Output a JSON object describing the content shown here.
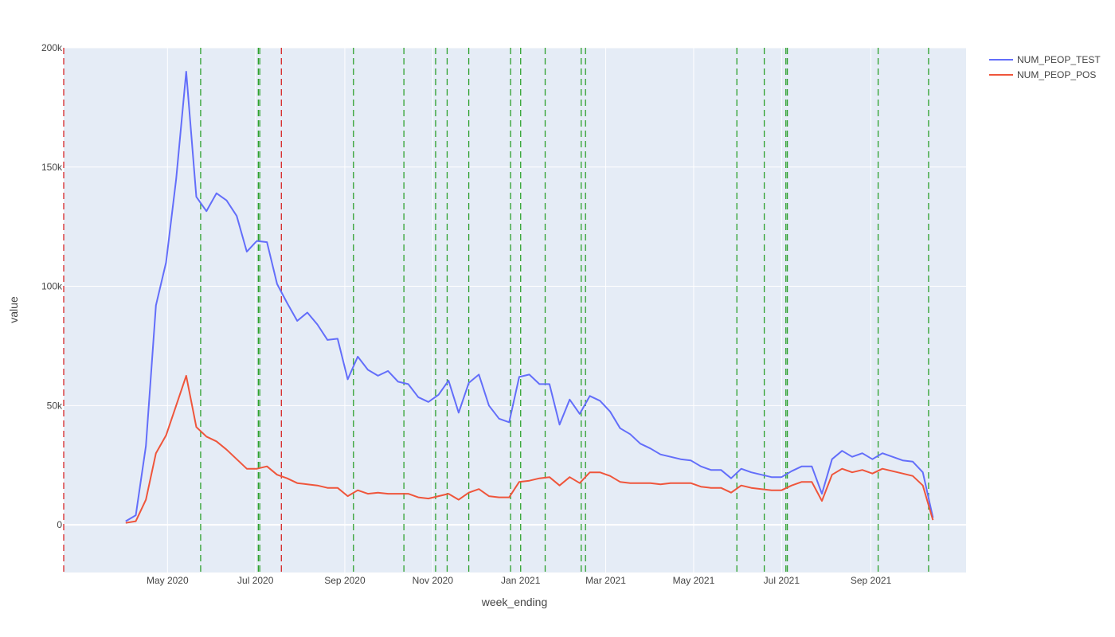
{
  "chart_data": {
    "type": "line",
    "xlabel": "week_ending",
    "ylabel": "value",
    "x_range": [
      "2020-02-19",
      "2021-11-06"
    ],
    "ylim": [
      -20000,
      200000
    ],
    "x_ticks": [
      {
        "date": "2020-05-01",
        "label": "May 2020"
      },
      {
        "date": "2020-07-01",
        "label": "Jul 2020"
      },
      {
        "date": "2020-09-01",
        "label": "Sep 2020"
      },
      {
        "date": "2020-11-01",
        "label": "Nov 2020"
      },
      {
        "date": "2021-01-01",
        "label": "Jan 2021"
      },
      {
        "date": "2021-03-01",
        "label": "Mar 2021"
      },
      {
        "date": "2021-05-01",
        "label": "May 2021"
      },
      {
        "date": "2021-07-01",
        "label": "Jul 2021"
      },
      {
        "date": "2021-09-01",
        "label": "Sep 2021"
      }
    ],
    "y_ticks": [
      {
        "value": 0,
        "label": "0"
      },
      {
        "value": 50000,
        "label": "50k"
      },
      {
        "value": 100000,
        "label": "100k"
      },
      {
        "value": 150000,
        "label": "150k"
      },
      {
        "value": 200000,
        "label": "200k"
      }
    ],
    "grid": true,
    "legend_position": "top-right",
    "colors": {
      "plot_bg": "#e5ecf6",
      "grid": "#ffffff",
      "vline_green": "#2ca02c",
      "vline_red": "#d62728"
    },
    "x": [
      "2020-04-02",
      "2020-04-09",
      "2020-04-16",
      "2020-04-23",
      "2020-04-30",
      "2020-05-07",
      "2020-05-14",
      "2020-05-21",
      "2020-05-28",
      "2020-06-04",
      "2020-06-11",
      "2020-06-18",
      "2020-06-25",
      "2020-07-02",
      "2020-07-09",
      "2020-07-16",
      "2020-07-23",
      "2020-07-30",
      "2020-08-06",
      "2020-08-13",
      "2020-08-20",
      "2020-08-27",
      "2020-09-03",
      "2020-09-10",
      "2020-09-17",
      "2020-09-24",
      "2020-10-01",
      "2020-10-08",
      "2020-10-15",
      "2020-10-22",
      "2020-10-29",
      "2020-11-05",
      "2020-11-12",
      "2020-11-19",
      "2020-11-26",
      "2020-12-03",
      "2020-12-10",
      "2020-12-17",
      "2020-12-24",
      "2020-12-31",
      "2021-01-07",
      "2021-01-14",
      "2021-01-21",
      "2021-01-28",
      "2021-02-04",
      "2021-02-11",
      "2021-02-18",
      "2021-02-25",
      "2021-03-04",
      "2021-03-11",
      "2021-03-18",
      "2021-03-25",
      "2021-04-01",
      "2021-04-08",
      "2021-04-15",
      "2021-04-22",
      "2021-04-29",
      "2021-05-06",
      "2021-05-13",
      "2021-05-20",
      "2021-05-27",
      "2021-06-03",
      "2021-06-10",
      "2021-06-17",
      "2021-06-24",
      "2021-07-01",
      "2021-07-08",
      "2021-07-15",
      "2021-07-22",
      "2021-07-29",
      "2021-08-05",
      "2021-08-12",
      "2021-08-19",
      "2021-08-26",
      "2021-09-02",
      "2021-09-09",
      "2021-09-16",
      "2021-09-23",
      "2021-09-30",
      "2021-10-07",
      "2021-10-14",
      "2021-10-21",
      "2021-10-28",
      "2021-11-04"
    ],
    "series": [
      {
        "name": "NUM_PEOP_TEST",
        "color": "#636efa",
        "values": [
          1500,
          4000,
          33000,
          92000,
          110000,
          145000,
          190000,
          137500,
          131500,
          139000,
          136000,
          129500,
          114500,
          119000,
          118500,
          101000,
          93000,
          85500,
          89000,
          84000,
          77500,
          78000,
          61000,
          70500,
          65000,
          62500,
          64500,
          60000,
          59000,
          53500,
          51500,
          54500,
          60500,
          47000,
          59500,
          63000,
          50000,
          44500,
          43000,
          62000,
          63000,
          59000,
          59000,
          42000,
          52500,
          46500,
          54000,
          52000,
          47500,
          40500,
          38000,
          34000,
          32000,
          29500,
          28500,
          27500,
          27000,
          24500,
          23000,
          23000,
          19500,
          23500,
          22000,
          21000,
          20000,
          20000,
          22500,
          24500,
          24500,
          13000,
          27500,
          31000,
          28500,
          30000,
          27500,
          30000,
          28500,
          27000,
          26500,
          22000,
          3000,
          null,
          null,
          null
        ],
        "values_trim": 81
      },
      {
        "name": "NUM_PEOP_POS",
        "color": "#ef553b",
        "values": [
          800,
          1500,
          10500,
          30000,
          37500,
          50000,
          62500,
          41000,
          37000,
          35000,
          31500,
          27500,
          23500,
          23500,
          24500,
          21000,
          19500,
          17500,
          17000,
          16500,
          15500,
          15500,
          12000,
          14500,
          13000,
          13500,
          13000,
          13000,
          13000,
          11500,
          11000,
          12000,
          13000,
          10500,
          13500,
          15000,
          12000,
          11500,
          11500,
          18000,
          18500,
          19500,
          20000,
          16500,
          20000,
          17500,
          22000,
          22000,
          20500,
          18000,
          17500,
          17500,
          17500,
          17000,
          17500,
          17500,
          17500,
          16000,
          15500,
          15500,
          13500,
          16500,
          15500,
          15000,
          14500,
          14500,
          16500,
          18000,
          18000,
          10000,
          21000,
          23500,
          22000,
          23000,
          21500,
          23500,
          22500,
          21500,
          20500,
          16500,
          2000,
          null,
          null,
          null
        ]
      }
    ],
    "vlines": [
      {
        "date": "2020-02-19",
        "color": "red"
      },
      {
        "date": "2020-05-24",
        "color": "green"
      },
      {
        "date": "2020-07-03",
        "color": "green"
      },
      {
        "date": "2020-07-04",
        "color": "green"
      },
      {
        "date": "2020-07-19",
        "color": "red"
      },
      {
        "date": "2020-09-07",
        "color": "green"
      },
      {
        "date": "2020-10-12",
        "color": "green"
      },
      {
        "date": "2020-11-03",
        "color": "green"
      },
      {
        "date": "2020-11-11",
        "color": "green"
      },
      {
        "date": "2020-11-26",
        "color": "green"
      },
      {
        "date": "2020-12-25",
        "color": "green"
      },
      {
        "date": "2021-01-01",
        "color": "green"
      },
      {
        "date": "2021-01-18",
        "color": "green"
      },
      {
        "date": "2021-02-12",
        "color": "green"
      },
      {
        "date": "2021-02-15",
        "color": "green"
      },
      {
        "date": "2021-05-31",
        "color": "green"
      },
      {
        "date": "2021-06-19",
        "color": "green"
      },
      {
        "date": "2021-07-04",
        "color": "green"
      },
      {
        "date": "2021-07-05",
        "color": "green"
      },
      {
        "date": "2021-09-06",
        "color": "green"
      },
      {
        "date": "2021-10-11",
        "color": "green"
      }
    ]
  }
}
